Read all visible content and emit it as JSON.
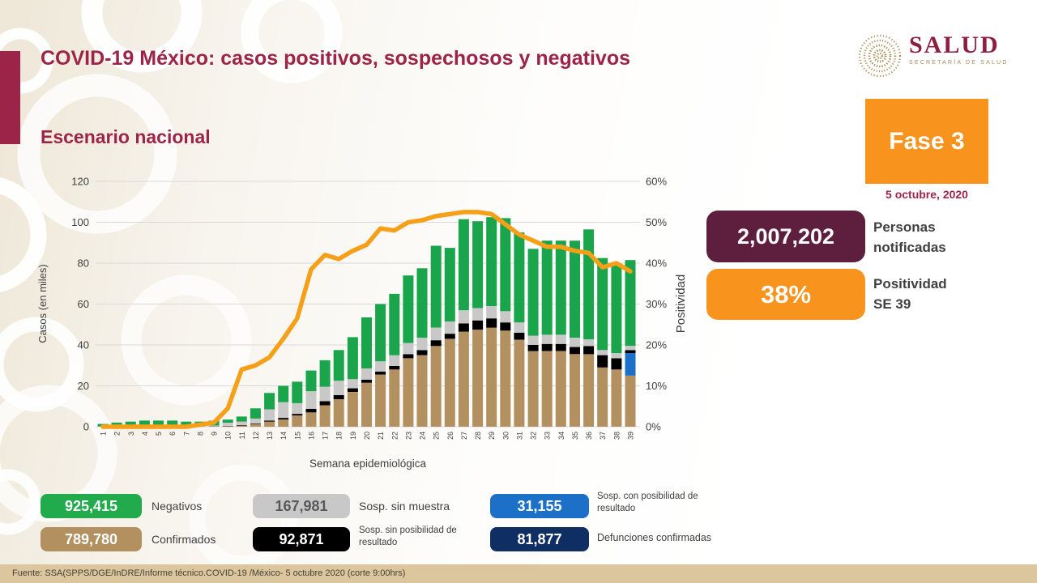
{
  "header": {
    "title": "COVID-19 México: casos positivos, sospechosos y negativos",
    "subtitle": "Escenario nacional"
  },
  "logo": {
    "name": "SALUD",
    "sub": "SECRETARÍA DE SALUD"
  },
  "phase": {
    "label": "Fase 3",
    "date": "5 octubre, 2020"
  },
  "stats": [
    {
      "value": "2,007,202",
      "label_line1": "Personas",
      "label_line2": "notificadas",
      "color": "#5e1f3f"
    },
    {
      "value": "38%",
      "label_line1": "Positividad",
      "label_line2": "SE 39",
      "color": "#f8941d"
    }
  ],
  "chart_data": {
    "type": "bar",
    "subtype": "stacked-bars-with-line",
    "title": "",
    "xlabel": "Semana epidemiológica",
    "ylabel_left": "Casos (en miles)",
    "ylabel_right": "Positividad",
    "ylim_left": [
      0,
      120
    ],
    "yticks_left": [
      0,
      20,
      40,
      60,
      80,
      100,
      120
    ],
    "ylim_right_pct": [
      0,
      60
    ],
    "yticks_right": [
      "0%",
      "10%",
      "20%",
      "30%",
      "40%",
      "50%",
      "60%"
    ],
    "grid": true,
    "categories": [
      1,
      2,
      3,
      4,
      5,
      6,
      7,
      8,
      9,
      10,
      11,
      12,
      13,
      14,
      15,
      16,
      17,
      18,
      19,
      20,
      21,
      22,
      23,
      24,
      25,
      26,
      27,
      28,
      29,
      30,
      31,
      32,
      33,
      34,
      35,
      36,
      37,
      38,
      39
    ],
    "units": "miles de casos",
    "series": [
      {
        "name": "Confirmados",
        "color": "#b3905f",
        "values": [
          0.05,
          0.05,
          0.05,
          0.1,
          0.1,
          0.1,
          0.1,
          0.1,
          0.15,
          0.3,
          0.6,
          1.2,
          2.5,
          3.5,
          5.5,
          7,
          10.5,
          13.5,
          17,
          21.5,
          25.5,
          28,
          33.5,
          35,
          39.5,
          43,
          46.5,
          47.5,
          48.5,
          47,
          42.5,
          37,
          37,
          37,
          35.5,
          35.5,
          29,
          28,
          25
        ]
      },
      {
        "name": "Sosp. con posibilidad de resultado",
        "color": "#1d70c8",
        "values": [
          0,
          0,
          0,
          0,
          0,
          0,
          0,
          0,
          0,
          0,
          0,
          0,
          0,
          0,
          0,
          0,
          0,
          0,
          0,
          0,
          0,
          0,
          0,
          0,
          0,
          0,
          0,
          0,
          0,
          0,
          0,
          0,
          0,
          0,
          0,
          0,
          0,
          0,
          11
        ]
      },
      {
        "name": "Sosp. sin posibilidad de resultado",
        "color": "#000000",
        "values": [
          0,
          0,
          0,
          0,
          0,
          0,
          0,
          0,
          0.05,
          0.1,
          0.2,
          0.3,
          0.5,
          0.8,
          0.8,
          1.8,
          2,
          2,
          1.8,
          1.5,
          1.5,
          1.7,
          2,
          2.5,
          2.8,
          2.5,
          4,
          4.5,
          4.5,
          4,
          3.5,
          3,
          3.5,
          3.5,
          3.5,
          4,
          6,
          5.5,
          1.5
        ]
      },
      {
        "name": "Sosp. sin muestra",
        "color": "#c8c8c8",
        "values": [
          0.1,
          0.15,
          0.15,
          0.2,
          0.2,
          0.2,
          0.2,
          0.2,
          0.4,
          1.6,
          1.7,
          2.5,
          5.5,
          7.7,
          5.2,
          8.6,
          7,
          7,
          4.5,
          5.5,
          5,
          5.3,
          5.5,
          6,
          6.2,
          6,
          6.5,
          6,
          6,
          5.5,
          5,
          4.5,
          4.5,
          4.5,
          4.5,
          3.2,
          2.5,
          2.5,
          2
        ]
      },
      {
        "name": "Negativos",
        "color": "#1aa54c",
        "values": [
          1.2,
          1.8,
          2.3,
          2.7,
          2.7,
          2.7,
          2.2,
          2.2,
          2.4,
          1.5,
          2.5,
          5,
          8,
          8,
          10.5,
          10.1,
          13,
          15,
          20.5,
          25,
          28,
          30,
          33,
          34,
          40,
          36,
          44.5,
          42.5,
          43.5,
          45.5,
          44,
          42.5,
          46,
          46,
          47.5,
          53.8,
          45,
          43,
          42
        ]
      }
    ],
    "line": {
      "name": "Positividad",
      "color": "#f6a01a",
      "values_pct": [
        0,
        0,
        0,
        0,
        0,
        0,
        0,
        0.5,
        1,
        4.5,
        14,
        15,
        17,
        21.5,
        26.5,
        38.5,
        42,
        41,
        43,
        44.5,
        48.5,
        48,
        50,
        50.5,
        51.5,
        52,
        52.5,
        52.5,
        52,
        49.5,
        47,
        45.5,
        44,
        44,
        43,
        42.5,
        39,
        40,
        38
      ]
    }
  },
  "legend": [
    {
      "value": "925,415",
      "label": "Negativos",
      "color": "#21ab4d",
      "text": "#ffffff"
    },
    {
      "value": "167,981",
      "label": "Sosp. sin muestra",
      "color": "#c8c8c8",
      "text": "#595959"
    },
    {
      "value": "31,155",
      "label": "Sosp. con posibilidad de resultado",
      "color": "#1d70c8",
      "text": "#ffffff"
    },
    {
      "value": "789,780",
      "label": "Confirmados",
      "color": "#b3905f",
      "text": "#ffffff"
    },
    {
      "value": "92,871",
      "label": "Sosp. sin posibilidad de resultado",
      "color": "#000000",
      "text": "#ffffff"
    },
    {
      "value": "81,877",
      "label": "Defunciones confirmadas",
      "color": "#0f2e63",
      "text": "#ffffff"
    }
  ],
  "footer": {
    "source": "Fuente: SSA(SPPS/DGE/InDRE/Informe técnico.COVID-19 /México- 5 octubre 2020 (corte 9:00hrs)"
  }
}
